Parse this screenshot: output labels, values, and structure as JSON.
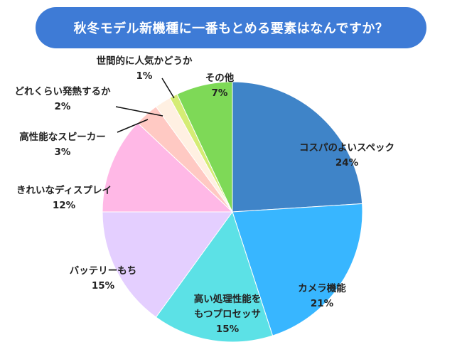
{
  "title": "秋冬モデル新機種に一番もとめる要素はなんですか？",
  "chart_data": {
    "type": "pie",
    "title": "秋冬モデル新機種に一番もとめる要素はなんですか？",
    "slices": [
      {
        "label": "コスパのよいスペック",
        "value": 24,
        "value_label": "24%",
        "color": "#3f84c8"
      },
      {
        "label": "カメラ機能",
        "value": 21,
        "value_label": "21%",
        "color": "#38b6ff"
      },
      {
        "label": "高い処理性能をもつプロセッサ",
        "lines": [
          "高い処理性能を",
          "もつプロセッサ"
        ],
        "value": 15,
        "value_label": "15%",
        "color": "#5ce1e6"
      },
      {
        "label": "バッテリーもち",
        "value": 15,
        "value_label": "15%",
        "color": "#e4cfff"
      },
      {
        "label": "きれいなディスプレイ",
        "value": 12,
        "value_label": "12%",
        "color": "#ffb8e6"
      },
      {
        "label": "高性能なスピーカー",
        "value": 3,
        "value_label": "3%",
        "color": "#ffc9c3"
      },
      {
        "label": "どれくらい発熱するか",
        "value": 2,
        "value_label": "2%",
        "color": "#fff0e2"
      },
      {
        "label": "世間的に人気かどうか",
        "value": 1,
        "value_label": "1%",
        "color": "#d5ec75"
      },
      {
        "label": "その他",
        "value": 7,
        "value_label": "7%",
        "color": "#7ed957"
      }
    ]
  }
}
